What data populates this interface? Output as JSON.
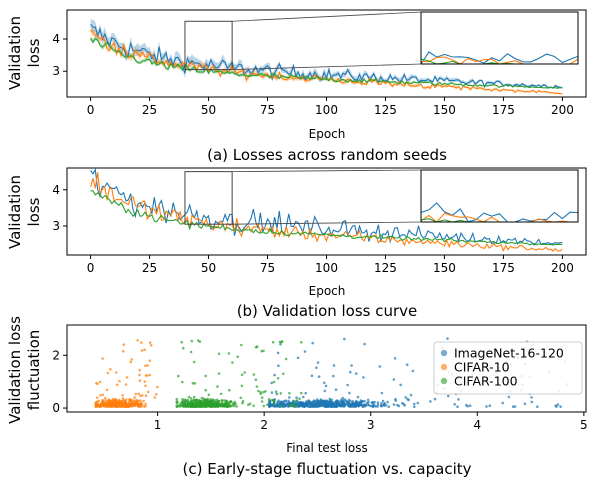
{
  "colors": {
    "imagenet": "#1f77b4",
    "cifar10": "#ff7f0e",
    "cifar100": "#2ca02c",
    "zoom_box": "#444444"
  },
  "chart_data": [
    {
      "type": "line",
      "panel": "a",
      "caption": "(a) Losses across random seeds",
      "xlabel": "Epoch",
      "ylabel": [
        "Validation",
        "loss"
      ],
      "xlim": [
        -10,
        210
      ],
      "ylim": [
        2.2,
        4.9
      ],
      "xticks": [
        0,
        25,
        50,
        75,
        100,
        125,
        150,
        175,
        200
      ],
      "yticks": [
        3,
        4
      ],
      "bands": true,
      "zoom": {
        "x_range": [
          40,
          60
        ],
        "y_range": [
          3.05,
          4.55
        ]
      },
      "series": [
        {
          "color_key": "imagenet",
          "start": 4.3,
          "mid": 3.3,
          "end": 2.52,
          "noise": 0.32
        },
        {
          "color_key": "cifar10",
          "start": 4.2,
          "mid": 3.2,
          "end": 2.32,
          "noise": 0.22
        },
        {
          "color_key": "cifar100",
          "start": 4.0,
          "mid": 3.05,
          "end": 2.48,
          "noise": 0.14
        }
      ]
    },
    {
      "type": "line",
      "panel": "b",
      "caption": "(b) Validation loss curve",
      "xlabel": "Epoch",
      "ylabel": [
        "Validation",
        "loss"
      ],
      "xlim": [
        -10,
        210
      ],
      "ylim": [
        2.2,
        4.6
      ],
      "xticks": [
        0,
        25,
        50,
        75,
        100,
        125,
        150,
        175,
        200
      ],
      "yticks": [
        3,
        4
      ],
      "bands": false,
      "zoom": {
        "x_range": [
          40,
          60
        ],
        "y_range": [
          3.05,
          4.5
        ]
      },
      "series": [
        {
          "color_key": "imagenet",
          "start": 4.3,
          "mid": 3.4,
          "end": 2.52,
          "noise": 0.45
        },
        {
          "color_key": "cifar10",
          "start": 4.3,
          "mid": 3.2,
          "end": 2.33,
          "noise": 0.3
        },
        {
          "color_key": "cifar100",
          "start": 4.0,
          "mid": 3.05,
          "end": 2.48,
          "noise": 0.12
        }
      ]
    },
    {
      "type": "scatter",
      "panel": "c",
      "caption": "(c) Early-stage fluctuation vs. capacity",
      "xlabel": "Final test loss",
      "ylabel": [
        "Validation loss",
        "fluctuation"
      ],
      "xlim": [
        0.15,
        5.02
      ],
      "ylim": [
        -0.15,
        3.15
      ],
      "xticks": [
        1,
        2,
        3,
        4,
        5
      ],
      "yticks": [
        0,
        2
      ],
      "legend_position": "center-right",
      "series": [
        {
          "name": "ImageNet-16-120",
          "color_key": "imagenet",
          "x_center": 2.55,
          "x_spread": 0.28,
          "x_min": 2.05,
          "x_max": 4.85
        },
        {
          "name": "CIFAR-10",
          "color_key": "cifar10",
          "x_center": 0.62,
          "x_spread": 0.1,
          "x_min": 0.42,
          "x_max": 1.0
        },
        {
          "name": "CIFAR-100",
          "color_key": "cifar100",
          "x_center": 1.45,
          "x_spread": 0.12,
          "x_min": 1.18,
          "x_max": 2.35
        }
      ]
    }
  ]
}
